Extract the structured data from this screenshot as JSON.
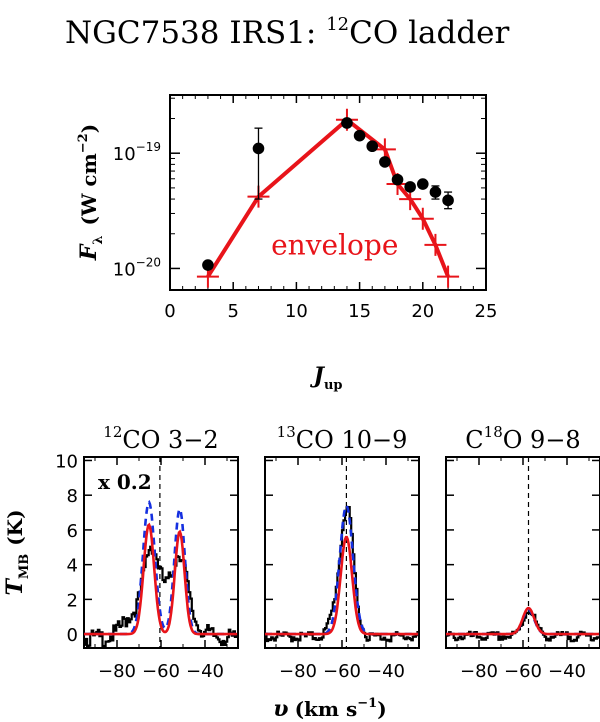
{
  "figure_title": {
    "prefix": "NGC7538 IRS1: ",
    "sup": "12",
    "suffix": "CO ladder"
  },
  "colors": {
    "model": "#e8141a",
    "blue": "#1530e0",
    "data": "#000000"
  },
  "chart_data": [
    {
      "type": "scatter",
      "name": "CO ladder",
      "xlabel_main": "J",
      "xlabel_sub": "up",
      "ylabel_main": "F",
      "ylabel_sub": "λ",
      "ylabel_unit": "(W cm",
      "ylabel_exp": "−2",
      "ylabel_close": ")",
      "xlim": [
        0,
        25
      ],
      "ylim": [
        6.5e-21,
        3.2e-19
      ],
      "yscale": "log",
      "xticks": [
        0,
        5,
        10,
        15,
        20,
        25
      ],
      "yticks": [
        {
          "value": 1e-20,
          "base": "10",
          "exp": "−20"
        },
        {
          "value": 1e-19,
          "base": "10",
          "exp": "−19"
        }
      ],
      "observed": [
        {
          "x": 3,
          "y": 1.07e-20,
          "err_lo": null,
          "err_hi": null
        },
        {
          "x": 7,
          "y": 1.1e-19,
          "err_lo": 4e-20,
          "err_hi": 1.65e-19
        },
        {
          "x": 14,
          "y": 1.83e-19,
          "err_lo": null,
          "err_hi": null
        },
        {
          "x": 15,
          "y": 1.42e-19,
          "err_lo": null,
          "err_hi": null
        },
        {
          "x": 16,
          "y": 1.15e-19,
          "err_lo": null,
          "err_hi": null
        },
        {
          "x": 17,
          "y": 8.4e-20,
          "err_lo": null,
          "err_hi": null
        },
        {
          "x": 18,
          "y": 5.9e-20,
          "err_lo": null,
          "err_hi": null
        },
        {
          "x": 19,
          "y": 5.1e-20,
          "err_lo": null,
          "err_hi": null
        },
        {
          "x": 20,
          "y": 5.4e-20,
          "err_lo": null,
          "err_hi": null
        },
        {
          "x": 21,
          "y": 4.6e-20,
          "err_lo": 4e-20,
          "err_hi": 5.2e-20
        },
        {
          "x": 22,
          "y": 3.9e-20,
          "err_lo": 3.3e-20,
          "err_hi": 4.6e-20
        }
      ],
      "model_name": "envelope",
      "model": [
        {
          "x": 3,
          "y": 8.5e-21
        },
        {
          "x": 7,
          "y": 4.2e-20
        },
        {
          "x": 14,
          "y": 1.95e-19
        },
        {
          "x": 17,
          "y": 1.08e-19
        },
        {
          "x": 18,
          "y": 5.4e-20
        },
        {
          "x": 19,
          "y": 4e-20
        },
        {
          "x": 20,
          "y": 2.7e-20
        },
        {
          "x": 21,
          "y": 1.6e-20
        },
        {
          "x": 22,
          "y": 8.5e-21
        }
      ]
    },
    {
      "type": "line",
      "name": "12CO 3-2",
      "title_sup": "12",
      "title_text": "CO  3−2",
      "scale_label": "x  0.2",
      "ylabel_main": "T",
      "ylabel_sub": "MB",
      "ylabel_unit": "(K)",
      "xlim": [
        -95,
        -25
      ],
      "ylim": [
        -0.8,
        10.2
      ],
      "xticks": [
        -80,
        -60,
        -40
      ],
      "yticks": [
        0,
        2,
        4,
        6,
        8,
        10
      ],
      "vline": -60.5,
      "observed_kind": "broad_double",
      "model_red": {
        "components": [
          {
            "mu": -65.5,
            "sigma": 2.4,
            "amp": 6.3
          },
          {
            "mu": -51.5,
            "sigma": 2.2,
            "amp": 5.9
          }
        ]
      },
      "model_blue": {
        "components": [
          {
            "mu": -65.5,
            "sigma": 2.7,
            "amp": 7.6
          },
          {
            "mu": -51.5,
            "sigma": 2.4,
            "amp": 7.2
          }
        ]
      }
    },
    {
      "type": "line",
      "name": "13CO 10-9",
      "title_sup": "13",
      "title_text": "CO  10−9",
      "xlim": [
        -95,
        -25
      ],
      "ylim": [
        -0.8,
        10.2
      ],
      "xticks": [
        -80,
        -60,
        -40
      ],
      "yticks": [],
      "vline": -58,
      "observed_kind": "single_peak",
      "model_red": {
        "components": [
          {
            "mu": -58,
            "sigma": 2.6,
            "amp": 5.6
          }
        ]
      },
      "model_blue": {
        "components": [
          {
            "mu": -58,
            "sigma": 3.0,
            "amp": 7.4
          }
        ]
      }
    },
    {
      "type": "line",
      "name": "C18O 9-8",
      "title_pre": "C",
      "title_sup": "18",
      "title_text": "O  9−8",
      "xlim": [
        -95,
        -25
      ],
      "ylim": [
        -0.8,
        10.2
      ],
      "xticks": [
        -80,
        -60,
        -40
      ],
      "yticks": [],
      "vline": -57.5,
      "observed_kind": "small_peak",
      "model_red": {
        "components": [
          {
            "mu": -57.5,
            "sigma": 2.6,
            "amp": 1.5
          }
        ]
      },
      "model_blue": {
        "components": [
          {
            "mu": -57.5,
            "sigma": 2.6,
            "amp": 1.4
          }
        ]
      }
    }
  ],
  "bottom_xlabel": {
    "main": "υ",
    "unit": "(km s",
    "exp": "−1",
    "close": ")"
  }
}
